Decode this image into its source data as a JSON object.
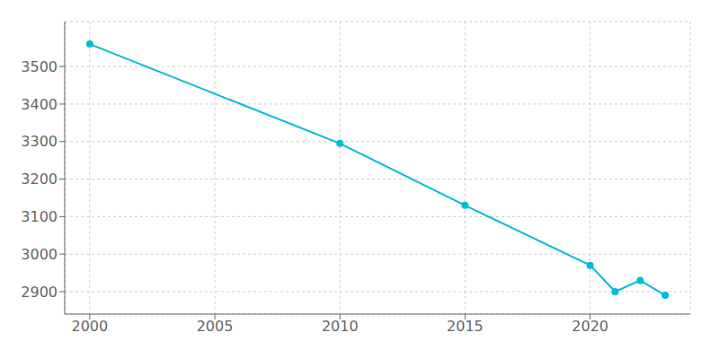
{
  "chart_data": {
    "type": "line",
    "x": [
      2000,
      2010,
      2015,
      2020,
      2021,
      2022,
      2023
    ],
    "values": [
      3560,
      3295,
      3130,
      2970,
      2900,
      2930,
      2890
    ],
    "color": "#00BCD4",
    "marker": "circle",
    "xlim": [
      1999,
      2024
    ],
    "ylim": [
      2840,
      3620
    ],
    "xticks": [
      2000,
      2005,
      2010,
      2015,
      2020
    ],
    "yticks": [
      2900,
      3000,
      3100,
      3200,
      3300,
      3400,
      3500
    ],
    "grid": true
  }
}
